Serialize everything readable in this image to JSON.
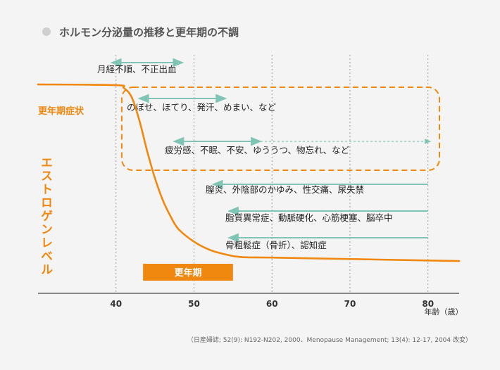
{
  "chart_data": {
    "type": "line",
    "title": "ホルモン分泌量の推移と更年期の不調",
    "xlabel": "年齢（歳）",
    "ylabel": "エストロゲンレベル",
    "xlim": [
      30,
      84
    ],
    "ylim": [
      0,
      100
    ],
    "x_ticks": [
      40,
      50,
      60,
      70,
      80
    ],
    "x_tick_labels": [
      "40",
      "50",
      "60",
      "70",
      "80"
    ],
    "vertical_gridlines": [
      40,
      50,
      60,
      70,
      80
    ],
    "grid": "dotted vertical",
    "series": [
      {
        "name": "エストロゲンレベル",
        "color": "#f0870f",
        "x": [
          30,
          40,
          41,
          42,
          43,
          44,
          45,
          46,
          47,
          48,
          50,
          52,
          54,
          56,
          60,
          70,
          80,
          84
        ],
        "y": [
          100,
          99.6,
          98,
          93,
          80,
          63,
          48,
          36,
          27,
          20,
          13,
          8.5,
          6,
          4.5,
          4.2,
          3.4,
          2.6,
          2.3
        ]
      }
    ],
    "group_label": "更年期症状",
    "group_box": {
      "x_from": 42,
      "x_to": 84,
      "color": "#f0870f"
    },
    "menopause_bar": {
      "label": "更年期",
      "x_from": 45,
      "x_to": 55,
      "color": "#f0870f"
    },
    "annotations": [
      {
        "text": "月経不順、不正出血",
        "x_from": 40,
        "x_to": 48,
        "arrows": "both",
        "dashed_to": null
      },
      {
        "text": "のぼせ、ほてり、発汗、めまい、など",
        "x_from": 43.5,
        "x_to": 53.5,
        "arrows": "both",
        "dashed_to": null
      },
      {
        "text": "疲労感、不眠、不安、ゆううつ、物忘れ、など",
        "x_from": 48,
        "x_to": 58,
        "arrows": "both",
        "dashed_to": 80
      },
      {
        "text": "膣炎、外陰部のかゆみ、性交痛、尿失禁",
        "x_from": 53,
        "x_to": 80,
        "arrows": "left",
        "dashed_to": null
      },
      {
        "text": "脂質異常症、動脈硬化、心筋梗塞、脳卒中",
        "x_from": 55,
        "x_to": 80,
        "arrows": "left",
        "dashed_to": null
      },
      {
        "text": "骨粗鬆症（骨折）、認知症",
        "x_from": 55,
        "x_to": 80,
        "arrows": "left",
        "dashed_to": null
      }
    ],
    "arrow_color": "#7fc4b5",
    "source": "（日産婦誌; 52(9): N192-N202, 2000、Menopause Management; 13(4): 12-17, 2004 改変）"
  }
}
